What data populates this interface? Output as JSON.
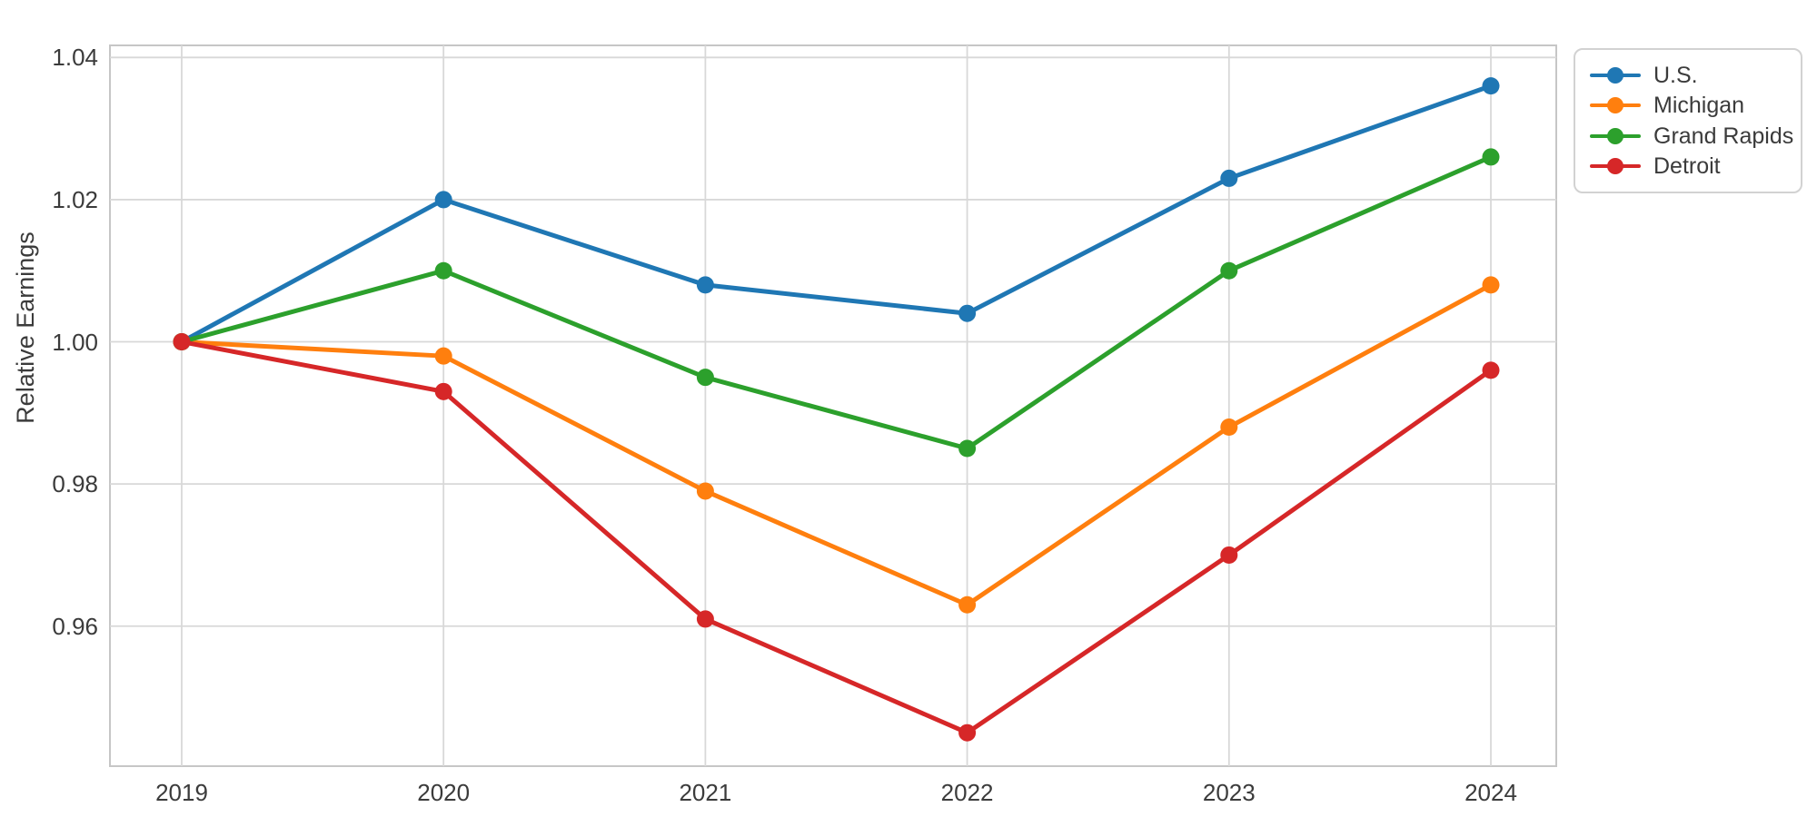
{
  "chart_data": {
    "type": "line",
    "x": [
      "2019",
      "2020",
      "2021",
      "2022",
      "2023",
      "2024"
    ],
    "series": [
      {
        "name": "U.S.",
        "color": "#1f77b4",
        "values": [
          1.0,
          1.02,
          1.008,
          1.004,
          1.023,
          1.036
        ]
      },
      {
        "name": "Michigan",
        "color": "#ff7f0e",
        "values": [
          1.0,
          0.998,
          0.979,
          0.963,
          0.988,
          1.008
        ]
      },
      {
        "name": "Grand Rapids",
        "color": "#2ca02c",
        "values": [
          1.0,
          1.01,
          0.995,
          0.985,
          1.01,
          1.026
        ]
      },
      {
        "name": "Detroit",
        "color": "#d62728",
        "values": [
          1.0,
          0.993,
          0.961,
          0.945,
          0.97,
          0.996
        ]
      }
    ],
    "title": "",
    "xlabel": "",
    "ylabel": "Relative Earnings",
    "ylim": [
      0.9403,
      1.0417
    ],
    "yticks": [
      0.96,
      0.98,
      1.0,
      1.02,
      1.04
    ],
    "ytick_labels": [
      "0.96",
      "0.98",
      "1.00",
      "1.02",
      "1.04"
    ],
    "grid": true,
    "legend_position": "upper-right-outside",
    "marker": "circle"
  }
}
